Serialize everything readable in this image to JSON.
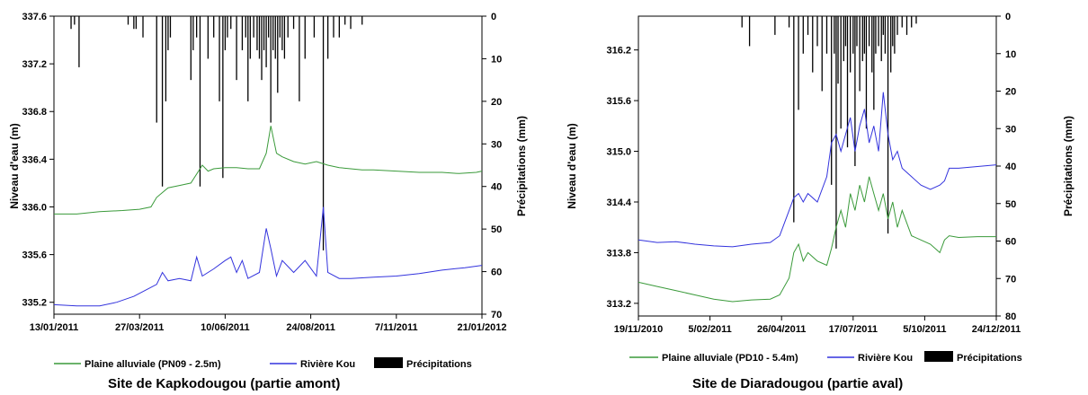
{
  "chart_data": [
    {
      "type": "line",
      "caption": "Site de Kapkodougou (partie amont)",
      "ylabel": "Niveau d'eau (m)",
      "y2label": "Précipitations (mm)",
      "x_ticks": [
        "13/01/2011",
        "27/03/2011",
        "10/06/2011",
        "24/08/2011",
        "7/11/2011",
        "21/01/2012"
      ],
      "y_ticks": [
        "335.2",
        "335.6",
        "336.0",
        "336.4",
        "336.8",
        "337.2",
        "337.6"
      ],
      "y2_ticks": [
        "0",
        "10",
        "20",
        "30",
        "40",
        "50",
        "60",
        "70"
      ],
      "ylim": [
        335.1,
        337.6
      ],
      "y2lim": [
        0,
        70
      ],
      "series": [
        {
          "name": "Plaine alluviale (PN09 - 2.5m)",
          "color": "#3a9a3a",
          "points": [
            [
              0,
              335.94
            ],
            [
              20,
              335.94
            ],
            [
              40,
              335.96
            ],
            [
              60,
              335.97
            ],
            [
              75,
              335.98
            ],
            [
              85,
              336.0
            ],
            [
              90,
              336.08
            ],
            [
              95,
              336.12
            ],
            [
              100,
              336.16
            ],
            [
              110,
              336.18
            ],
            [
              120,
              336.2
            ],
            [
              130,
              336.35
            ],
            [
              135,
              336.3
            ],
            [
              140,
              336.32
            ],
            [
              150,
              336.33
            ],
            [
              160,
              336.33
            ],
            [
              170,
              336.32
            ],
            [
              180,
              336.32
            ],
            [
              186,
              336.45
            ],
            [
              190,
              336.68
            ],
            [
              195,
              336.45
            ],
            [
              200,
              336.42
            ],
            [
              210,
              336.38
            ],
            [
              220,
              336.36
            ],
            [
              230,
              336.38
            ],
            [
              240,
              336.35
            ],
            [
              250,
              336.33
            ],
            [
              260,
              336.32
            ],
            [
              270,
              336.31
            ],
            [
              280,
              336.31
            ],
            [
              300,
              336.3
            ],
            [
              320,
              336.29
            ],
            [
              340,
              336.29
            ],
            [
              355,
              336.28
            ],
            [
              370,
              336.29
            ],
            [
              375,
              336.3
            ]
          ]
        },
        {
          "name": "Rivière Kou",
          "color": "#3333dd",
          "points": [
            [
              0,
              335.18
            ],
            [
              20,
              335.17
            ],
            [
              40,
              335.17
            ],
            [
              55,
              335.2
            ],
            [
              70,
              335.25
            ],
            [
              80,
              335.3
            ],
            [
              90,
              335.35
            ],
            [
              95,
              335.45
            ],
            [
              100,
              335.38
            ],
            [
              110,
              335.4
            ],
            [
              120,
              335.38
            ],
            [
              125,
              335.58
            ],
            [
              130,
              335.42
            ],
            [
              140,
              335.48
            ],
            [
              150,
              335.55
            ],
            [
              155,
              335.58
            ],
            [
              160,
              335.45
            ],
            [
              165,
              335.55
            ],
            [
              170,
              335.4
            ],
            [
              180,
              335.45
            ],
            [
              186,
              335.82
            ],
            [
              190,
              335.65
            ],
            [
              195,
              335.42
            ],
            [
              200,
              335.55
            ],
            [
              210,
              335.45
            ],
            [
              220,
              335.55
            ],
            [
              230,
              335.42
            ],
            [
              236,
              336.0
            ],
            [
              240,
              335.45
            ],
            [
              250,
              335.4
            ],
            [
              260,
              335.4
            ],
            [
              280,
              335.41
            ],
            [
              300,
              335.42
            ],
            [
              320,
              335.44
            ],
            [
              340,
              335.47
            ],
            [
              360,
              335.49
            ],
            [
              375,
              335.51
            ]
          ]
        },
        {
          "name": "Précipitations",
          "color": "#000000",
          "bars": [
            [
              15,
              3
            ],
            [
              18,
              2
            ],
            [
              22,
              12
            ],
            [
              65,
              2
            ],
            [
              70,
              3
            ],
            [
              72,
              3
            ],
            [
              78,
              5
            ],
            [
              90,
              25
            ],
            [
              95,
              40
            ],
            [
              98,
              20
            ],
            [
              100,
              8
            ],
            [
              102,
              5
            ],
            [
              120,
              15
            ],
            [
              122,
              8
            ],
            [
              125,
              5
            ],
            [
              128,
              40
            ],
            [
              135,
              10
            ],
            [
              140,
              5
            ],
            [
              145,
              20
            ],
            [
              148,
              38
            ],
            [
              150,
              8
            ],
            [
              152,
              5
            ],
            [
              155,
              3
            ],
            [
              160,
              15
            ],
            [
              165,
              8
            ],
            [
              168,
              5
            ],
            [
              170,
              20
            ],
            [
              172,
              10
            ],
            [
              175,
              5
            ],
            [
              178,
              8
            ],
            [
              180,
              10
            ],
            [
              182,
              15
            ],
            [
              184,
              8
            ],
            [
              186,
              12
            ],
            [
              188,
              5
            ],
            [
              190,
              25
            ],
            [
              192,
              8
            ],
            [
              194,
              10
            ],
            [
              196,
              18
            ],
            [
              198,
              5
            ],
            [
              200,
              8
            ],
            [
              202,
              10
            ],
            [
              205,
              5
            ],
            [
              210,
              3
            ],
            [
              215,
              20
            ],
            [
              220,
              10
            ],
            [
              228,
              5
            ],
            [
              236,
              55
            ],
            [
              240,
              10
            ],
            [
              245,
              5
            ],
            [
              250,
              5
            ],
            [
              255,
              2
            ],
            [
              260,
              3
            ],
            [
              270,
              2
            ]
          ]
        }
      ]
    },
    {
      "type": "line",
      "caption": "Site de Diaradougou (partie aval)",
      "ylabel": "Niveau d'eau (m)",
      "y2label": "Précipitations (mm)",
      "x_ticks": [
        "19/11/2010",
        "5/02/2011",
        "26/04/2011",
        "17/07/2011",
        "5/10/2011",
        "24/12/2011"
      ],
      "y_ticks": [
        "313.2",
        "313.8",
        "314.4",
        "315.0",
        "315.6",
        "316.2"
      ],
      "y2_ticks": [
        "0",
        "10",
        "20",
        "30",
        "40",
        "50",
        "60",
        "70",
        "80"
      ],
      "ylim": [
        313.05,
        316.6
      ],
      "y2lim": [
        0,
        80
      ],
      "series": [
        {
          "name": "Plaine alluviale (PD10 - 5.4m)",
          "color": "#3a9a3a",
          "points": [
            [
              0,
              313.45
            ],
            [
              20,
              313.4
            ],
            [
              40,
              313.35
            ],
            [
              60,
              313.3
            ],
            [
              80,
              313.25
            ],
            [
              100,
              313.22
            ],
            [
              120,
              313.24
            ],
            [
              140,
              313.25
            ],
            [
              150,
              313.3
            ],
            [
              160,
              313.5
            ],
            [
              165,
              313.8
            ],
            [
              170,
              313.9
            ],
            [
              175,
              313.7
            ],
            [
              180,
              313.8
            ],
            [
              190,
              313.7
            ],
            [
              200,
              313.65
            ],
            [
              205,
              313.85
            ],
            [
              210,
              314.1
            ],
            [
              215,
              314.3
            ],
            [
              220,
              314.1
            ],
            [
              225,
              314.5
            ],
            [
              230,
              314.3
            ],
            [
              235,
              314.6
            ],
            [
              240,
              314.4
            ],
            [
              245,
              314.7
            ],
            [
              250,
              314.5
            ],
            [
              255,
              314.3
            ],
            [
              260,
              314.5
            ],
            [
              265,
              314.2
            ],
            [
              270,
              314.4
            ],
            [
              275,
              314.1
            ],
            [
              280,
              314.3
            ],
            [
              290,
              314.0
            ],
            [
              300,
              313.95
            ],
            [
              310,
              313.9
            ],
            [
              320,
              313.8
            ],
            [
              325,
              313.95
            ],
            [
              330,
              314.0
            ],
            [
              340,
              313.98
            ],
            [
              360,
              313.99
            ],
            [
              380,
              313.99
            ]
          ]
        },
        {
          "name": "Rivière Kou",
          "color": "#3333dd",
          "points": [
            [
              0,
              313.95
            ],
            [
              20,
              313.92
            ],
            [
              40,
              313.93
            ],
            [
              60,
              313.9
            ],
            [
              80,
              313.88
            ],
            [
              100,
              313.87
            ],
            [
              120,
              313.9
            ],
            [
              140,
              313.92
            ],
            [
              150,
              314.0
            ],
            [
              160,
              314.3
            ],
            [
              165,
              314.45
            ],
            [
              170,
              314.5
            ],
            [
              175,
              314.4
            ],
            [
              180,
              314.5
            ],
            [
              190,
              314.4
            ],
            [
              200,
              314.7
            ],
            [
              205,
              315.1
            ],
            [
              210,
              315.2
            ],
            [
              215,
              315.0
            ],
            [
              220,
              315.2
            ],
            [
              225,
              315.4
            ],
            [
              230,
              315.0
            ],
            [
              235,
              315.3
            ],
            [
              240,
              315.5
            ],
            [
              245,
              315.1
            ],
            [
              250,
              315.3
            ],
            [
              255,
              315.0
            ],
            [
              260,
              315.7
            ],
            [
              265,
              315.2
            ],
            [
              270,
              314.9
            ],
            [
              275,
              315.0
            ],
            [
              280,
              314.8
            ],
            [
              290,
              314.7
            ],
            [
              300,
              314.6
            ],
            [
              310,
              314.55
            ],
            [
              320,
              314.6
            ],
            [
              325,
              314.65
            ],
            [
              330,
              314.8
            ],
            [
              340,
              314.8
            ],
            [
              360,
              314.82
            ],
            [
              380,
              314.84
            ]
          ]
        },
        {
          "name": "Précipitations",
          "color": "#000000",
          "bars": [
            [
              110,
              3
            ],
            [
              118,
              8
            ],
            [
              145,
              5
            ],
            [
              160,
              3
            ],
            [
              165,
              55
            ],
            [
              170,
              25
            ],
            [
              175,
              10
            ],
            [
              180,
              5
            ],
            [
              185,
              15
            ],
            [
              190,
              8
            ],
            [
              195,
              20
            ],
            [
              200,
              10
            ],
            [
              205,
              45
            ],
            [
              208,
              10
            ],
            [
              210,
              62
            ],
            [
              212,
              18
            ],
            [
              215,
              30
            ],
            [
              218,
              12
            ],
            [
              220,
              8
            ],
            [
              222,
              35
            ],
            [
              225,
              15
            ],
            [
              228,
              10
            ],
            [
              230,
              40
            ],
            [
              232,
              8
            ],
            [
              235,
              20
            ],
            [
              238,
              12
            ],
            [
              240,
              10
            ],
            [
              242,
              30
            ],
            [
              245,
              8
            ],
            [
              248,
              15
            ],
            [
              250,
              25
            ],
            [
              252,
              10
            ],
            [
              255,
              8
            ],
            [
              258,
              12
            ],
            [
              260,
              5
            ],
            [
              262,
              10
            ],
            [
              265,
              58
            ],
            [
              268,
              15
            ],
            [
              270,
              8
            ],
            [
              272,
              10
            ],
            [
              275,
              5
            ],
            [
              280,
              3
            ],
            [
              285,
              5
            ],
            [
              290,
              3
            ],
            [
              295,
              2
            ]
          ]
        }
      ]
    }
  ]
}
